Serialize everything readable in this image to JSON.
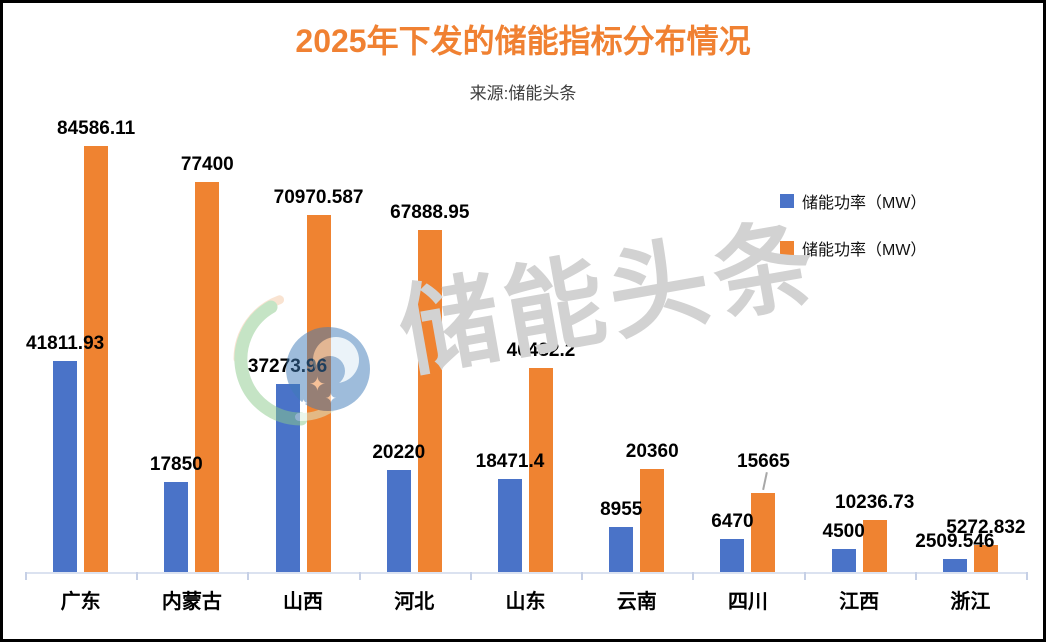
{
  "title": "2025年下发的储能指标分布情况",
  "subtitle": "来源:储能头条",
  "watermark": {
    "text": "储能头条"
  },
  "legend": [
    {
      "label": "储能功率（MW）",
      "color": "#4a73c8"
    },
    {
      "label": "储能功率（MW）",
      "color": "#ef8331"
    }
  ],
  "colors": {
    "title": "#f08132",
    "blue_series": "#4a73c8",
    "orange_series": "#ef8331",
    "watermark_text": "#d2d2d2",
    "axis_line": "#dbe2f0",
    "axis_tick": "#c6d0e6"
  },
  "chart_data": {
    "type": "bar",
    "title": "2025年下发的储能指标分布情况",
    "subtitle": "来源:储能头条",
    "categories": [
      "广东",
      "内蒙古",
      "山西",
      "河北",
      "山东",
      "云南",
      "四川",
      "江西",
      "浙江"
    ],
    "series": [
      {
        "name": "储能功率（MW）",
        "color": "#4a73c8",
        "values": [
          41811.93,
          17850,
          37273.96,
          20220,
          18471.4,
          8955,
          6470,
          4500,
          2509.546
        ]
      },
      {
        "name": "储能功率（MW）",
        "color": "#ef8331",
        "values": [
          84586.11,
          77400,
          70970.587,
          67888.95,
          40482.2,
          20360,
          15665,
          10236.73,
          5272.832
        ]
      }
    ],
    "data_labels": true,
    "label_offsets": {
      "1-6": {
        "dx": 0,
        "dy": -14,
        "leader": true
      }
    },
    "ylim": [
      0,
      90000
    ],
    "grid": false,
    "y_axis_visible": false,
    "legend_position": "right-middle"
  }
}
